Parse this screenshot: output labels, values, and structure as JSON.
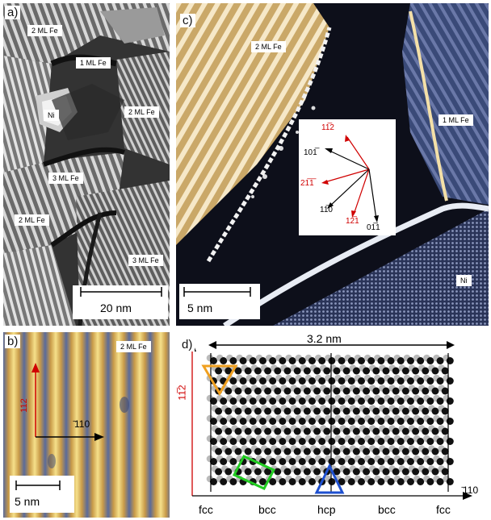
{
  "panel_a": {
    "label": "a)",
    "tags": [
      "2 ML Fe",
      "1 ML Fe",
      "Ni",
      "2 ML Fe",
      "3 ML Fe",
      "2 ML Fe",
      "3 ML Fe"
    ],
    "scale": "20 nm"
  },
  "panel_b": {
    "label": "b)",
    "tag": "2 ML Fe",
    "dir_red": "112",
    "dir_black": "̄110",
    "scale": "5 nm"
  },
  "panel_c": {
    "label": "c)",
    "tags": [
      "2 ML Fe",
      "1 ML Fe",
      "Ni"
    ],
    "scale": "5 nm",
    "directions": [
      {
        "text": "11̅2",
        "color": "red"
      },
      {
        "text": "101̅",
        "color": "black"
      },
      {
        "text": "21̅1̅",
        "color": "red"
      },
      {
        "text": "11̅0",
        "color": "black"
      },
      {
        "text": "12̅1",
        "color": "red"
      },
      {
        "text": "01̅1",
        "color": "black"
      }
    ]
  },
  "panel_d": {
    "label": "d)",
    "width_label": "3.2 nm",
    "yaxis": "11̅2",
    "xaxis": "̄110",
    "regions": [
      "fcc",
      "bcc",
      "hcp",
      "bcc",
      "fcc"
    ],
    "colors": {
      "black_atom": "#111111",
      "grey_atom": "#bbbbbb",
      "orange": "#f0a020",
      "green": "#22cc22",
      "blue": "#1e50d0",
      "axis_red": "#d00000"
    }
  }
}
